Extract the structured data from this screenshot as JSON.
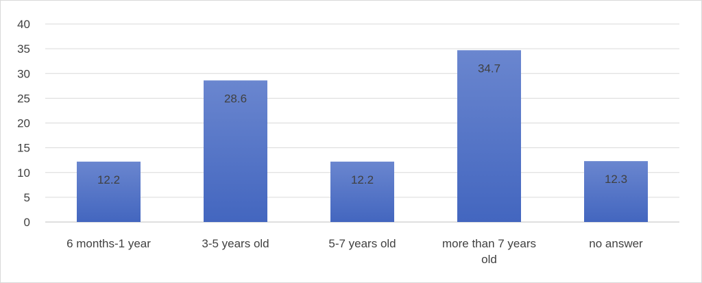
{
  "chart_data": {
    "type": "bar",
    "categories": [
      [
        "6 months-1 year"
      ],
      [
        "3-5 years old"
      ],
      [
        "5-7 years old"
      ],
      [
        "more than 7 years",
        "old"
      ],
      [
        "no answer"
      ]
    ],
    "values": [
      12.2,
      28.6,
      12.2,
      34.7,
      12.3
    ],
    "data_labels": [
      "12.2",
      "28.6",
      "12.2",
      "34.7",
      "12.3"
    ],
    "y_ticks": [
      "0",
      "5",
      "10",
      "15",
      "20",
      "25",
      "30",
      "35",
      "40"
    ],
    "ylim": [
      0,
      40
    ],
    "grid": true,
    "legend": "none",
    "title": "",
    "xlabel": "",
    "ylabel": "",
    "colors": {
      "bar_top": "#6a86cf",
      "bar_bottom": "#4366bf"
    }
  }
}
